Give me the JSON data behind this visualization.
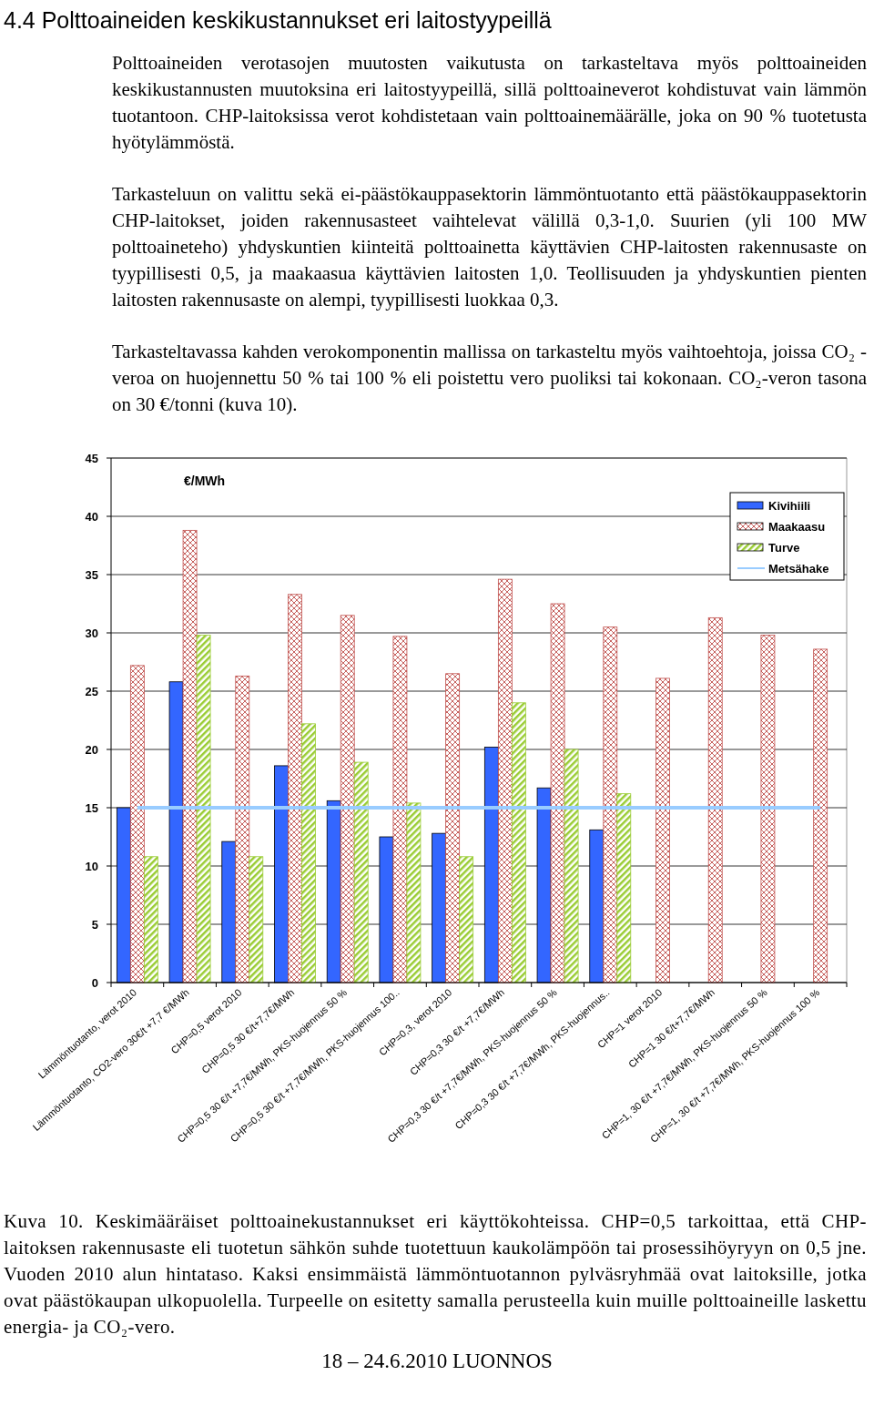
{
  "chart_data": {
    "type": "bar",
    "title": "4.4 Polttoaineiden keskikustannukset eri laitostyypeillä",
    "subtitle": "Polttoaineiden verotasojen muutosten vaikutusta on tarkasteltava myös polttoaineiden keskikustannusten muutoksina eri laitostyypeillä, sillä polttoaineverot kohdistuvat vain lämmön tuotantoon. CHP-laitoksissa verot kohdistetaan vain polttoainemäärälle, joka on 90 % tuotetusta hyötylämmöstä.",
    "annotations": [
      "Tarkasteluun on valittu sekä ei-päästökauppasektorin lämmöntuotanto että päästökauppasektorin CHP-laitokset, joiden rakennusasteet vaihtelevat välillä 0,3-1,0. Suurien (yli 100 MW polttoaineteho) yhdyskuntien kiinteitä polttoainetta käyttävien CHP-laitosten rakennusaste on tyypillisesti 0,5, ja maakaasua käyttävien laitosten 1,0. Teollisuuden ja yhdyskuntien pienten laitosten rakennusaste on alempi, tyypillisesti luokkaa 0,3.",
      "Tarkasteltavassa kahden verokomponentin mallissa on tarkasteltu myös vaihtoehtoja, joissa CO₂ -veroa on huojennettu 50 % tai 100 % eli poistettu vero puoliksi tai kokonaan. CO₂-veron tasona on 30 €/tonni (kuva 10).",
      "Kuva 10. Keskimääräiset polttoainekustannukset eri käyttökohteissa. CHP=0,5 tarkoittaa, että CHP-laitoksen rakennusaste eli tuotetun sähkön suhde tuotettuun kaukolämpöön tai prosessihöyryyn on 0,5 jne. Vuoden 2010 alun hintataso. Kaksi ensimmäistä lämmöntuotannon pylväsryhmää ovat laitoksille, jotka ovat päästökaupan ulkopuolella. Turpeelle on esitetty samalla perusteella kuin muille polttoaineille laskettu energia- ja CO₂-vero.",
      "18 – 24.6.2010 LUONNOS"
    ],
    "ylabel": "€/MWh",
    "categories": [
      "Lämmöntuotanto, verot 2010",
      "Lämmöntuotanto, CO2-vero 30€/t +7,7 €/MWh",
      "CHP=0,5 verot 2010",
      "CHP=0,5 30 €/t+7,7€/MWh",
      "CHP=0,5 30 €/t +7,7€/MWh, PKS-huojennus 50 %",
      "CHP=0,5 30 €/t +7,7€/MWh, PKS-huojennus 100..",
      "CHP=0,3, verot 2010",
      "CHP=0,3 30 €/t +7,7€/MWh",
      "CHP=0,3 30 €/t +7,7€/MWh, PKS-huojennus 50 %",
      "CHP=0,3 30 €/t +7,7€/MWh, PKS-huojennus..",
      "CHP=1 verot 2010",
      "CHP=1 30 €/t+7,7€/MWh",
      "CHP=1, 30 €/t +7,7€/MWh, PKS-huojennus 50 %",
      "CHP=1, 30 €/t +7,7€/MWh, PKS-huojennus 100 %"
    ],
    "series": [
      {
        "name": "Kivihiili",
        "color": "#3366ff",
        "values": [
          15.0,
          25.8,
          12.1,
          18.6,
          15.6,
          12.5,
          12.8,
          20.2,
          16.7,
          13.1,
          null,
          null,
          null,
          null
        ]
      },
      {
        "name": "Maakaasu",
        "color": "#c0504d",
        "values": [
          27.2,
          38.8,
          26.3,
          33.3,
          31.5,
          29.7,
          26.5,
          34.6,
          32.5,
          30.5,
          26.1,
          31.3,
          29.8,
          28.6
        ]
      },
      {
        "name": "Turve",
        "color": "#99cc33",
        "values": [
          10.8,
          29.8,
          10.8,
          22.2,
          18.9,
          15.4,
          10.8,
          24.0,
          20.0,
          16.2,
          null,
          null,
          null,
          null
        ]
      },
      {
        "name": "Metsähake",
        "type": "line",
        "color": "#99ccff",
        "values": [
          15,
          15,
          15,
          15,
          15,
          15,
          15,
          15,
          15,
          15,
          15,
          15,
          15,
          15
        ]
      }
    ],
    "ylim": [
      0,
      45
    ],
    "yticks": [
      0,
      5,
      10,
      15,
      20,
      25,
      30,
      35,
      40,
      45
    ],
    "grid": "y",
    "legend": "top right"
  }
}
